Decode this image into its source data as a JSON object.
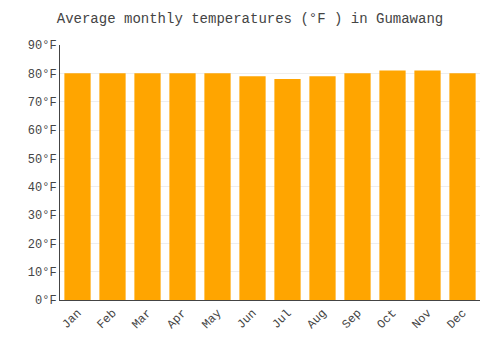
{
  "chart_data": {
    "type": "bar",
    "title": "Average monthly temperatures (°F ) in Gumawang",
    "categories": [
      "Jan",
      "Feb",
      "Mar",
      "Apr",
      "May",
      "Jun",
      "Jul",
      "Aug",
      "Sep",
      "Oct",
      "Nov",
      "Dec"
    ],
    "values": [
      80,
      80,
      80,
      80,
      80,
      79,
      78,
      79,
      80,
      81,
      81,
      80
    ],
    "color": "#FFA500",
    "ylim": [
      0,
      90
    ],
    "yticks": [
      {
        "value": 0,
        "label": "0°F"
      },
      {
        "value": 10,
        "label": "10°F"
      },
      {
        "value": 20,
        "label": "20°F"
      },
      {
        "value": 30,
        "label": "30°F"
      },
      {
        "value": 40,
        "label": "40°F"
      },
      {
        "value": 50,
        "label": "50°F"
      },
      {
        "value": 60,
        "label": "60°F"
      },
      {
        "value": 70,
        "label": "70°F"
      },
      {
        "value": 80,
        "label": "80°F"
      },
      {
        "value": 90,
        "label": "90°F"
      }
    ],
    "grid": true
  }
}
